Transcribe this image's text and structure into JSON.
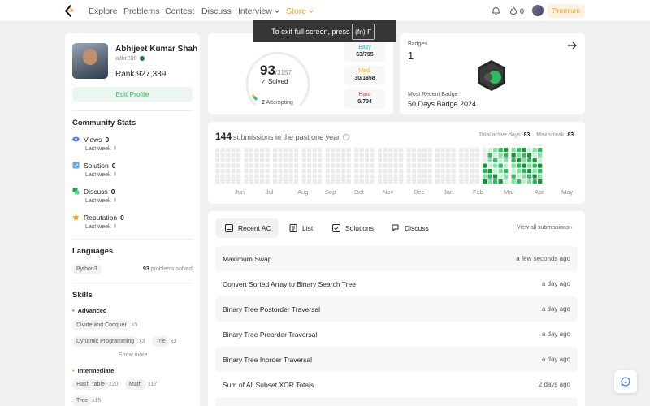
{
  "nav": {
    "links": [
      "Explore",
      "Problems",
      "Contest",
      "Discuss",
      "Interview",
      "Store"
    ],
    "streak_count": "0",
    "premium_label": "Premium",
    "accent": "#ffa116"
  },
  "toast": {
    "text": "To exit full screen, press",
    "key": "(fn) F"
  },
  "profile": {
    "name": "Abhijeet Kumar Shah",
    "username": "ajtkr200",
    "rank": "Rank 927,339",
    "edit_label": "Edit Profile"
  },
  "community": {
    "title": "Community Stats",
    "items": [
      {
        "label": "Views",
        "value": "0",
        "sub": "Last week",
        "sub_val": "0",
        "icon": "eye-icon"
      },
      {
        "label": "Solution",
        "value": "0",
        "sub": "Last week",
        "sub_val": "0",
        "icon": "check-square-icon"
      },
      {
        "label": "Discuss",
        "value": "0",
        "sub": "Last week",
        "sub_val": "0",
        "icon": "chat-icon"
      },
      {
        "label": "Reputation",
        "value": "0",
        "sub": "Last week",
        "sub_val": "0",
        "icon": "star-icon"
      }
    ]
  },
  "languages": {
    "title": "Languages",
    "lang": "Python3",
    "solved_num": "93",
    "solved_text": "problems solved"
  },
  "skills": {
    "title": "Skills",
    "advanced_label": "Advanced",
    "advanced": [
      {
        "name": "Divide and Conquer",
        "count": "x5"
      },
      {
        "name": "Dynamic Programming",
        "count": "x3"
      },
      {
        "name": "Trie",
        "count": "x3"
      }
    ],
    "show_more": "Show more",
    "intermediate_label": "Intermediate",
    "intermediate": [
      {
        "name": "Hash Table",
        "count": "x20"
      },
      {
        "name": "Math",
        "count": "x17"
      },
      {
        "name": "Tree",
        "count": "x15"
      }
    ]
  },
  "solved": {
    "count": "93",
    "total": "/3157",
    "label": "Solved",
    "attempting_num": "2",
    "attempting_text": "Attempting",
    "difficulties": [
      {
        "name": "Easy",
        "count": "63/795",
        "color": "#1cbaba"
      },
      {
        "name": "Med.",
        "count": "30/1658",
        "color": "#ffb800"
      },
      {
        "name": "Hard",
        "count": "0/704",
        "color": "#f63737"
      }
    ]
  },
  "badges": {
    "label": "Badges",
    "count": "1",
    "recent_label": "Most Recent Badge",
    "recent": "50 Days Badge 2024"
  },
  "calendar": {
    "count": "144",
    "text": "submissions in the past one year",
    "active_label": "Total active days:",
    "active_val": "83",
    "streak_label": "Max streak:",
    "streak_val": "83",
    "months": [
      "Jun",
      "Jul",
      "Aug",
      "Sep",
      "Oct",
      "Nov",
      "Dec",
      "Jan",
      "Feb",
      "Mar",
      "Apr",
      "May"
    ]
  },
  "submissions": {
    "tabs": [
      "Recent AC",
      "List",
      "Solutions",
      "Discuss"
    ],
    "view_all": "View all submissions",
    "rows": [
      {
        "title": "Maximum Swap",
        "time": "a few seconds ago"
      },
      {
        "title": "Convert Sorted Array to Binary Search Tree",
        "time": "a day ago"
      },
      {
        "title": "Binary Tree Postorder Traversal",
        "time": "a day ago"
      },
      {
        "title": "Binary Tree Preorder Traversal",
        "time": "a day ago"
      },
      {
        "title": "Binary Tree Inorder Traversal",
        "time": "a day ago"
      },
      {
        "title": "Sum of All Subset XOR Totals",
        "time": "2 days ago"
      }
    ]
  }
}
